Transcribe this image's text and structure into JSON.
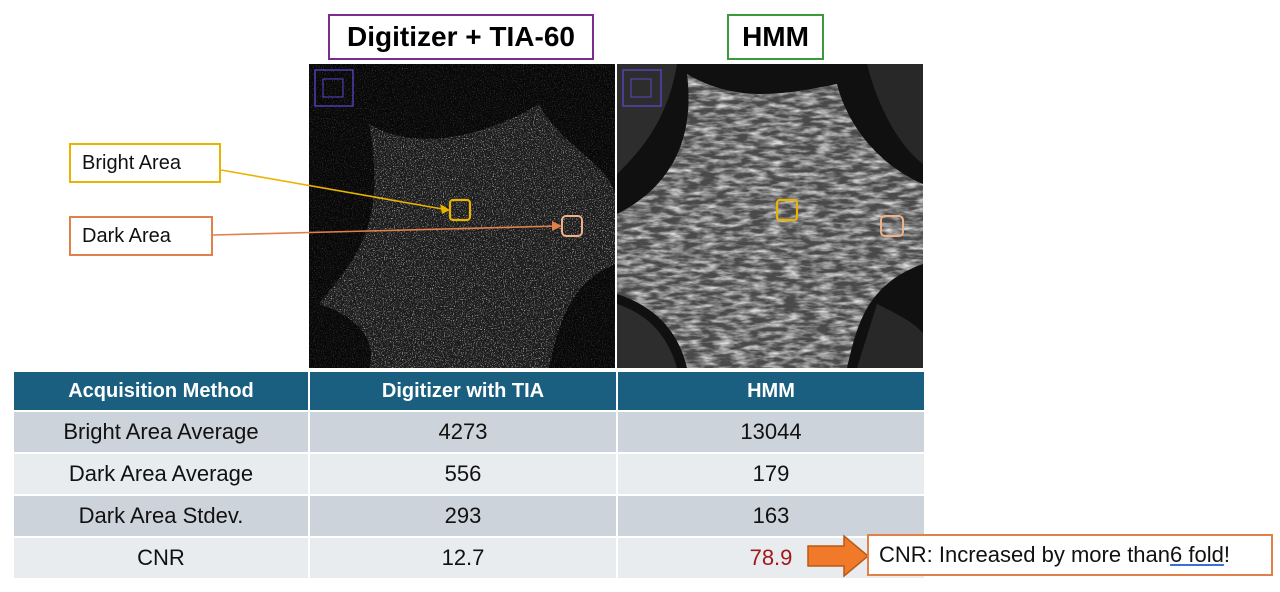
{
  "titles": {
    "left": "Digitizer + TIA-60",
    "right": "HMM"
  },
  "callouts": {
    "bright": "Bright Area",
    "dark": "Dark Area"
  },
  "table": {
    "headers": [
      "Acquisition  Method",
      "Digitizer with TIA",
      "HMM"
    ],
    "rows": [
      [
        "Bright Area Average",
        "4273",
        "13044"
      ],
      [
        "Dark Area Average",
        "556",
        "179"
      ],
      [
        "Dark Area Stdev.",
        "293",
        "163"
      ],
      [
        "CNR",
        "12.7",
        "78.9"
      ]
    ]
  },
  "note": {
    "prefix": "CNR: Increased by more than ",
    "underlined": "6 fold",
    "suffix": " !"
  },
  "colors": {
    "header_bg": "#1a5f7f",
    "bright_box": "#e8b400",
    "dark_box": "#e0804a",
    "left_title_border": "#7b2c8f",
    "right_title_border": "#3c9a3c",
    "highlight_value": "#a01818"
  }
}
